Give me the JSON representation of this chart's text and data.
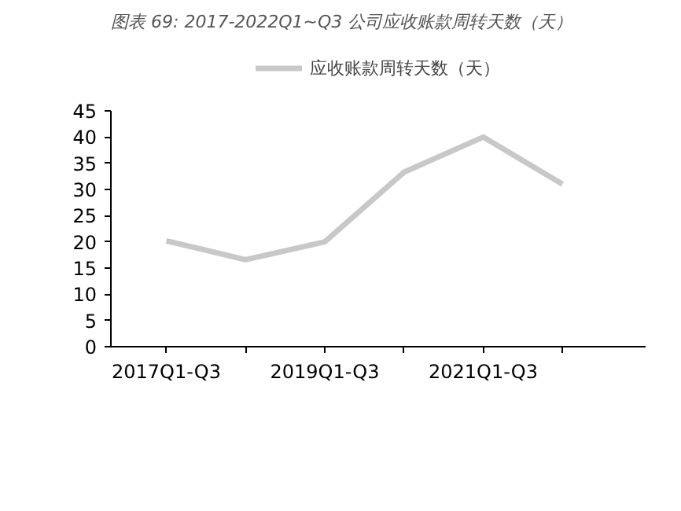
{
  "chart_data": {
    "type": "line",
    "title": "图表 69:  2017-2022Q1~Q3 公司应收账款周转天数（天）",
    "categories": [
      "2017Q1-Q3",
      null,
      "2019Q1-Q3",
      null,
      "2021Q1-Q3",
      null
    ],
    "series": [
      {
        "name": "应收账款周转天数（天）",
        "color": "#c8c8c8",
        "values": [
          20.2,
          16.6,
          20.0,
          33.3,
          40.0,
          31.0
        ]
      }
    ],
    "ylim": [
      0,
      45
    ],
    "yticks": [
      0,
      5,
      10,
      15,
      20,
      25,
      30,
      35,
      40,
      45
    ],
    "grid": false,
    "legend": "top",
    "marker": "none",
    "line_style": "solid"
  }
}
